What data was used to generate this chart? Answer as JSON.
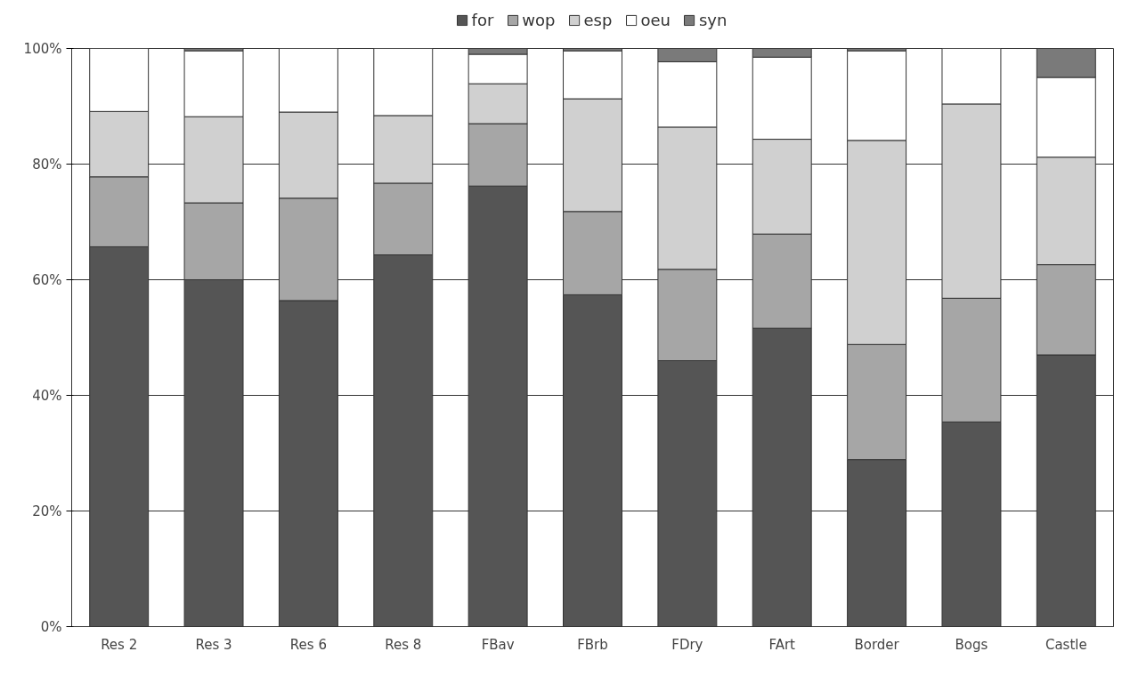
{
  "chart_data": {
    "type": "bar",
    "stacked": true,
    "categories": [
      "Res 2",
      "Res 3",
      "Res 6",
      "Res 8",
      "FBav",
      "FBrb",
      "FDry",
      "FArt",
      "Border",
      "Bogs",
      "Castle"
    ],
    "series": [
      {
        "name": "for",
        "color": "#555555",
        "values": [
          65.7,
          60.0,
          56.4,
          64.3,
          76.2,
          57.4,
          46.0,
          51.6,
          28.9,
          35.4,
          47.0
        ]
      },
      {
        "name": "wop",
        "color": "#a6a6a6",
        "values": [
          12.1,
          13.3,
          17.7,
          12.4,
          10.8,
          14.4,
          15.8,
          16.3,
          19.9,
          21.4,
          15.6
        ]
      },
      {
        "name": "esp",
        "color": "#d0d0d0",
        "values": [
          11.3,
          14.9,
          14.9,
          11.7,
          6.9,
          19.5,
          24.6,
          16.4,
          35.3,
          33.6,
          18.6
        ]
      },
      {
        "name": "oeu",
        "color": "#ffffff",
        "values": [
          10.9,
          11.4,
          11.0,
          11.6,
          5.1,
          8.3,
          11.3,
          14.2,
          15.5,
          9.6,
          13.8
        ]
      },
      {
        "name": "syn",
        "color": "#7a7a7a",
        "values": [
          0,
          0.4,
          0,
          0,
          1.0,
          0.4,
          2.3,
          1.5,
          0.4,
          0,
          5.0
        ]
      }
    ],
    "ylim": [
      0,
      100
    ],
    "yticks": [
      {
        "value": 0,
        "label": "0%"
      },
      {
        "value": 20,
        "label": "20%"
      },
      {
        "value": 40,
        "label": "40%"
      },
      {
        "value": 60,
        "label": "60%"
      },
      {
        "value": 80,
        "label": "80%"
      },
      {
        "value": 100,
        "label": "100%"
      }
    ],
    "grid": "y",
    "legend": "top"
  }
}
